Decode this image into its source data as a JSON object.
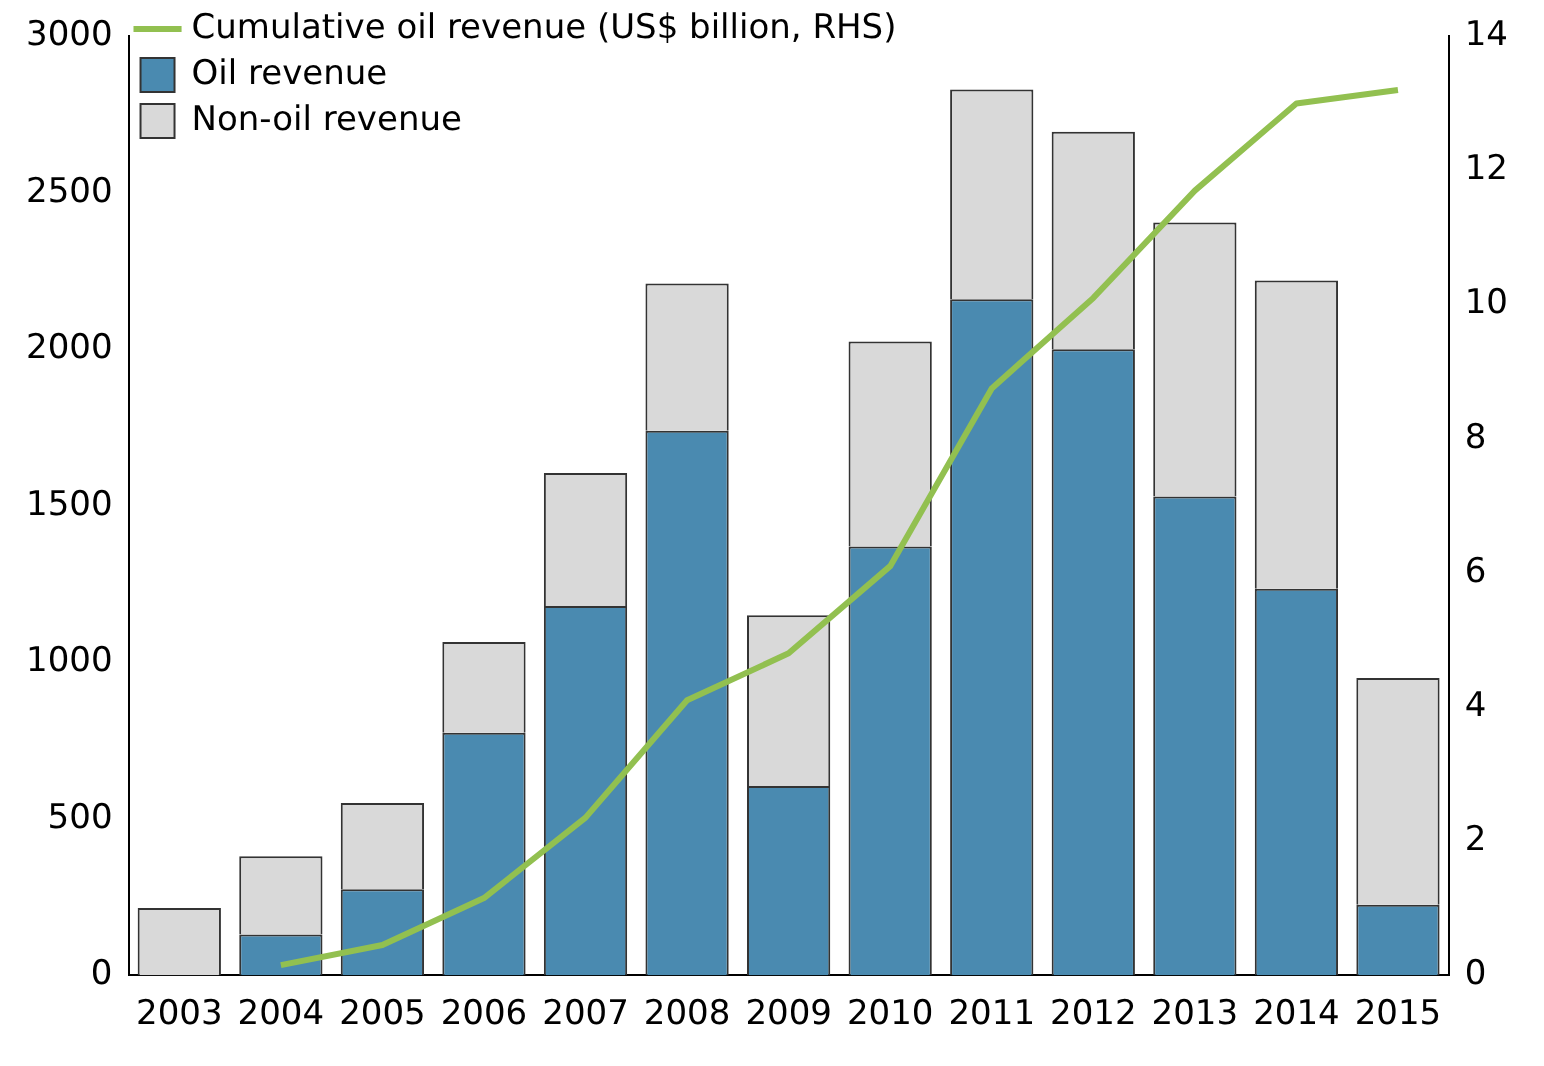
{
  "chart_data": {
    "type": "bar",
    "stacked": true,
    "categories": [
      "2003",
      "2004",
      "2005",
      "2006",
      "2007",
      "2008",
      "2009",
      "2010",
      "2011",
      "2012",
      "2013",
      "2014",
      "2015"
    ],
    "series": [
      {
        "name": "Oil revenue",
        "color": "#4a8ab0",
        "values": [
          0,
          130,
          275,
          775,
          1180,
          1740,
          605,
          1370,
          2160,
          2000,
          1530,
          1235,
          225
        ]
      },
      {
        "name": "Non-oil revenue",
        "color": "#d9d9d9",
        "values": [
          215,
          250,
          275,
          290,
          425,
          470,
          545,
          655,
          670,
          695,
          875,
          985,
          725
        ]
      },
      {
        "name": "Cumulative oil revenue (US$ billion, RHS)",
        "type": "line",
        "axis": "y2",
        "color": "#92c050",
        "values": [
          null,
          0.15,
          0.45,
          1.15,
          2.35,
          4.1,
          4.8,
          6.1,
          8.75,
          10.1,
          11.7,
          13.0,
          13.2
        ]
      }
    ],
    "ylim": [
      0,
      3000
    ],
    "yticks": [
      0,
      500,
      1000,
      1500,
      2000,
      2500,
      3000
    ],
    "y2lim": [
      0,
      14
    ],
    "y2ticks": [
      0,
      2,
      4,
      6,
      8,
      10,
      12,
      14
    ],
    "grid": false,
    "legend": "top left",
    "marker": "none"
  }
}
